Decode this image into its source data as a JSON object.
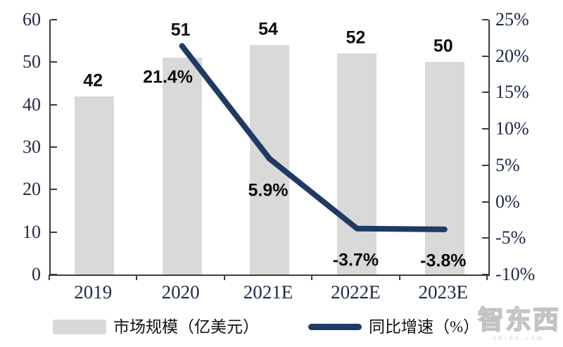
{
  "chart_data": {
    "type": "bar+line",
    "categories": [
      "2019",
      "2020",
      "2021E",
      "2022E",
      "2023E"
    ],
    "series": [
      {
        "name": "市场规模（亿美元）",
        "type": "bar",
        "axis": "left",
        "color": "#d9d9d9",
        "values": [
          42,
          51,
          54,
          52,
          50
        ],
        "labels": [
          "42",
          "51",
          "54",
          "52",
          "50"
        ]
      },
      {
        "name": "同比增速（%）",
        "type": "line",
        "axis": "right",
        "color": "#1f3a63",
        "values": [
          null,
          21.4,
          5.9,
          -3.7,
          -3.8
        ],
        "labels": [
          null,
          "21.4%",
          "5.9%",
          "-3.7%",
          "-3.8%"
        ]
      }
    ],
    "left_axis": {
      "min": 0,
      "max": 60,
      "ticks": [
        "60",
        "50",
        "40",
        "30",
        "20",
        "10",
        "0"
      ]
    },
    "right_axis": {
      "min": -10,
      "max": 25,
      "ticks": [
        "25%",
        "20%",
        "15%",
        "10%",
        "5%",
        "0%",
        "-5%",
        "-10%"
      ]
    },
    "grid": false,
    "legend_position": "bottom",
    "legend": [
      {
        "label": "市场规模（亿美元）",
        "swatch": "bar"
      },
      {
        "label": "同比增速（%）",
        "swatch": "line"
      }
    ]
  },
  "watermark": {
    "text": "智东西",
    "subtext": "zhidx.com"
  },
  "colors": {
    "bar": "#d9d9d9",
    "line": "#1f3a63",
    "axis": "#3d3d3d",
    "tick_text": "#1e2a45",
    "data_label_text": "#0d0d0d"
  }
}
